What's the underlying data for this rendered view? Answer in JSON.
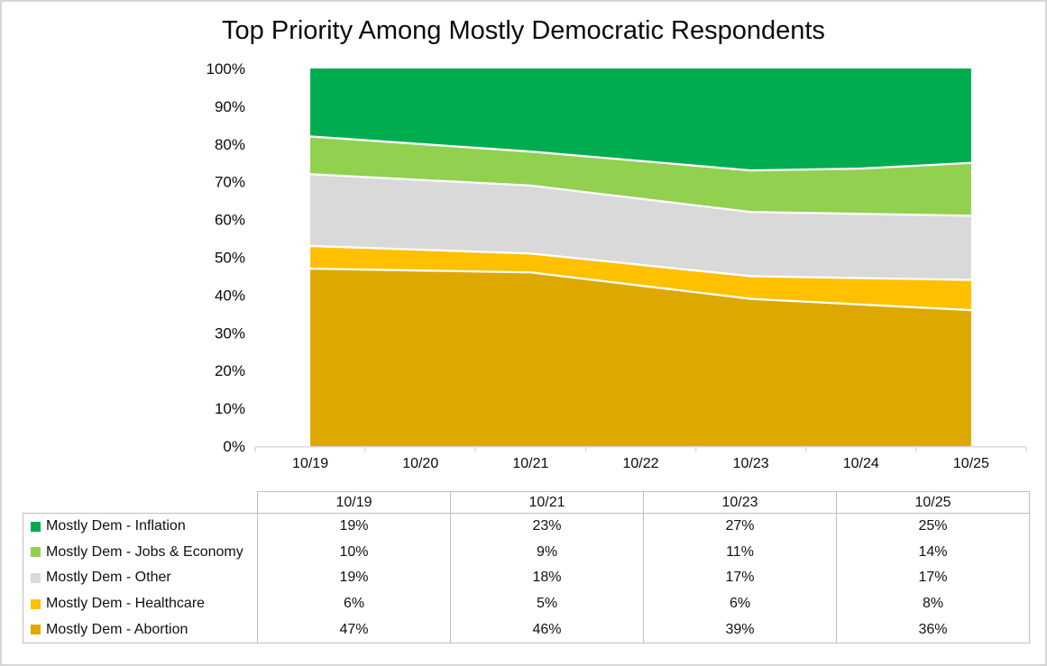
{
  "title": "Top Priority Among Mostly Democratic Respondents",
  "colors": {
    "inflation": "#00AC50",
    "jobs_economy": "#92D050",
    "other": "#D9D9D9",
    "healthcare": "#FFC000",
    "abortion": "#DDA900",
    "axis_line": "#D9D9D9",
    "table_border": "#BFBFBF",
    "canvas_border": "#D6D6D6"
  },
  "chart_data": {
    "type": "area",
    "stacked": true,
    "normalized_top": 100,
    "title": "Top Priority Among Mostly Democratic Respondents",
    "x": [
      "10/19",
      "10/20",
      "10/21",
      "10/22",
      "10/23",
      "10/24",
      "10/25"
    ],
    "y_ticks": [
      "0%",
      "10%",
      "20%",
      "30%",
      "40%",
      "50%",
      "60%",
      "70%",
      "80%",
      "90%",
      "100%"
    ],
    "ylim": [
      0,
      100
    ],
    "grid": false,
    "legend_position": "table-left-below",
    "series": [
      {
        "name": "Mostly Dem - Abortion",
        "color": "#DDA900",
        "values": [
          47,
          46.5,
          46,
          42.5,
          39,
          37.5,
          36
        ]
      },
      {
        "name": "Mostly Dem - Healthcare",
        "color": "#FFC000",
        "values": [
          6,
          5.5,
          5,
          5.5,
          6,
          7,
          8
        ]
      },
      {
        "name": "Mostly Dem - Other",
        "color": "#D9D9D9",
        "values": [
          19,
          18.5,
          18,
          17.5,
          17,
          17,
          17
        ]
      },
      {
        "name": "Mostly Dem - Jobs & Economy",
        "color": "#92D050",
        "values": [
          10,
          9.5,
          9,
          10,
          11,
          12,
          14
        ]
      },
      {
        "name": "Mostly Dem - Inflation",
        "color": "#00AC50",
        "values": [
          19,
          20.5,
          23,
          24.5,
          27,
          26.5,
          25
        ]
      }
    ]
  },
  "table": {
    "columns": [
      "10/19",
      "10/21",
      "10/23",
      "10/25"
    ],
    "rows": [
      {
        "label": "Mostly Dem - Inflation",
        "color": "#00AC50",
        "values": [
          "19%",
          "23%",
          "27%",
          "25%"
        ]
      },
      {
        "label": "Mostly Dem - Jobs & Economy",
        "color": "#92D050",
        "values": [
          "10%",
          "9%",
          "11%",
          "14%"
        ]
      },
      {
        "label": "Mostly Dem - Other",
        "color": "#D9D9D9",
        "values": [
          "19%",
          "18%",
          "17%",
          "17%"
        ]
      },
      {
        "label": "Mostly Dem - Healthcare",
        "color": "#FFC000",
        "values": [
          "6%",
          "5%",
          "6%",
          "8%"
        ]
      },
      {
        "label": "Mostly Dem - Abortion",
        "color": "#DDA900",
        "values": [
          "47%",
          "46%",
          "39%",
          "36%"
        ]
      }
    ]
  }
}
